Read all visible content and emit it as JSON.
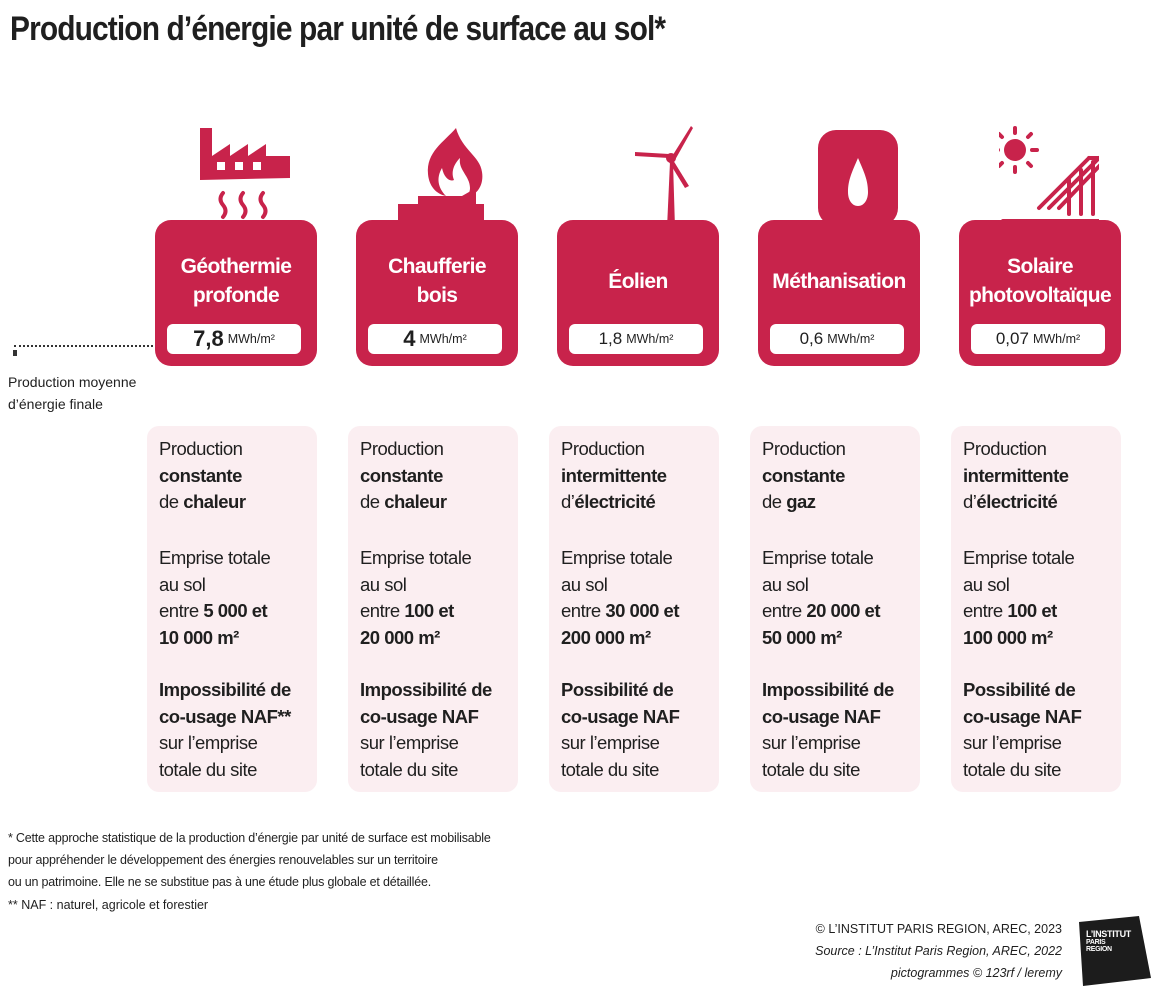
{
  "title": "Production d’énergie par unité de surface au sol*",
  "average_label": [
    "Production moyenne",
    "d’énergie finale"
  ],
  "unit": "MWh/m²",
  "accent_color": "#c8234b",
  "info_bg_color": "#fbeef1",
  "sources": [
    {
      "name": [
        "Géothermie",
        "profonde"
      ],
      "icon": "factory-heat-icon",
      "value": "7,8",
      "info": {
        "l1": "Production",
        "l2": "constante",
        "l3a": "de ",
        "l3b": "chaleur",
        "e1": "Emprise totale",
        "e2": "au sol",
        "e3a": "entre ",
        "e3b": "5 000 et",
        "e4": "10 000 m²",
        "n1": "Impossibilité de",
        "n2": "co-usage NAF**",
        "n3": "sur l’emprise",
        "n4": "totale du site"
      }
    },
    {
      "name": [
        "Chaufferie",
        "bois"
      ],
      "icon": "wood-fire-icon",
      "value": "4",
      "info": {
        "l1": "Production",
        "l2": "constante",
        "l3a": "de ",
        "l3b": "chaleur",
        "e1": "Emprise totale",
        "e2": "au sol",
        "e3a": "entre ",
        "e3b": "100 et",
        "e4": "20 000 m²",
        "n1": "Impossibilité de",
        "n2": "co-usage NAF",
        "n3": "sur l’emprise",
        "n4": "totale du site"
      }
    },
    {
      "name": [
        "Éolien"
      ],
      "icon": "wind-turbine-icon",
      "value": "1,8",
      "info": {
        "l1": "Production",
        "l2": "intermittente",
        "l3a": "d’",
        "l3b": "électricité",
        "e1": "Emprise totale",
        "e2": "au sol",
        "e3a": "entre ",
        "e3b": "30 000 et",
        "e4": "200 000 m²",
        "n1": "Possibilité de",
        "n2": "co-usage NAF",
        "n3": "sur l’emprise",
        "n4": "totale du site"
      }
    },
    {
      "name": [
        "Méthanisation"
      ],
      "icon": "gas-flame-icon",
      "value": "0,6",
      "info": {
        "l1": "Production",
        "l2": "constante",
        "l3a": "de ",
        "l3b": "gaz",
        "e1": "Emprise totale",
        "e2": "au sol",
        "e3a": "entre ",
        "e3b": "20 000 et",
        "e4": "50 000 m²",
        "n1": "Impossibilité de",
        "n2": "co-usage NAF",
        "n3": "sur l’emprise",
        "n4": "totale du site"
      }
    },
    {
      "name": [
        "Solaire",
        "photovoltaïque"
      ],
      "icon": "solar-panel-icon",
      "value": "0,07",
      "info": {
        "l1": "Production",
        "l2": "intermittente",
        "l3a": "d’",
        "l3b": "électricité",
        "e1": "Emprise totale",
        "e2": "au sol",
        "e3a": "entre ",
        "e3b": "100 et",
        "e4": "100 000 m²",
        "n1": "Possibilité de",
        "n2": "co-usage NAF",
        "n3": "sur l’emprise",
        "n4": "totale du site"
      }
    }
  ],
  "footnote": [
    "* Cette approche statistique de la production d’énergie par unité de surface est mobilisable",
    "pour appréhender le développement des énergies renouvelables sur un territoire",
    "ou un patrimoine. Elle ne se substitue pas à une étude plus globale et détaillée."
  ],
  "footnote2": "** NAF : naturel, agricole et forestier",
  "credits": {
    "copyright": "© L’INSTITUT PARIS REGION, AREC, 2023",
    "source": "Source : L’Institut Paris Region, AREC, 2022",
    "pictos": "pictogrammes © 123rf / leremy"
  },
  "logo": {
    "line1": "L’INSTITUT",
    "line2": "PARIS",
    "line3": "REGION"
  }
}
